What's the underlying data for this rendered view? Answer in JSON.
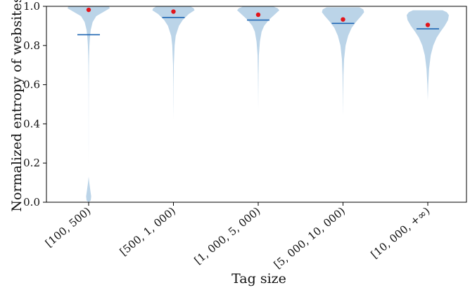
{
  "chart_data": {
    "type": "violin",
    "xlabel": "Tag size",
    "ylabel": "Normalized entropy of websites",
    "ylim": [
      0,
      1
    ],
    "yticks": [
      0.0,
      0.2,
      0.4,
      0.6,
      0.8,
      1.0
    ],
    "ytick_labels": [
      "0.0",
      "0.2",
      "0.4",
      "0.6",
      "0.8",
      "1.0"
    ],
    "grid": false,
    "legend": "none",
    "colors": {
      "violin": "#a8c8e1",
      "median": "#1f66b3",
      "mean": "#e3141a"
    },
    "categories": [
      "[100, 500)",
      "[500, 1, 000)",
      "[1, 000, 5, 000)",
      "[5, 000, 10, 000)",
      "[10, 000, +∞)"
    ],
    "groups": [
      {
        "category": "[100, 500)",
        "mean": 0.982,
        "median": 0.855,
        "density": [
          [
            0.0,
            0.0
          ],
          [
            0.01,
            0.05
          ],
          [
            0.03,
            0.06
          ],
          [
            0.06,
            0.04
          ],
          [
            0.1,
            0.015
          ],
          [
            0.13,
            0.0
          ],
          [
            0.2,
            0.0
          ],
          [
            0.3,
            0.001
          ],
          [
            0.4,
            0.001
          ],
          [
            0.5,
            0.002
          ],
          [
            0.6,
            0.003
          ],
          [
            0.7,
            0.006
          ],
          [
            0.75,
            0.01
          ],
          [
            0.8,
            0.018
          ],
          [
            0.84,
            0.03
          ],
          [
            0.88,
            0.05
          ],
          [
            0.92,
            0.095
          ],
          [
            0.95,
            0.18
          ],
          [
            0.98,
            0.42
          ],
          [
            0.99,
            0.5
          ],
          [
            1.0,
            0.48
          ]
        ]
      },
      {
        "category": "[500, 1, 000)",
        "mean": 0.973,
        "median": 0.943,
        "density": [
          [
            0.42,
            0.0
          ],
          [
            0.5,
            0.002
          ],
          [
            0.6,
            0.004
          ],
          [
            0.7,
            0.009
          ],
          [
            0.8,
            0.028
          ],
          [
            0.85,
            0.055
          ],
          [
            0.9,
            0.13
          ],
          [
            0.93,
            0.22
          ],
          [
            0.96,
            0.36
          ],
          [
            0.98,
            0.5
          ],
          [
            0.99,
            0.48
          ],
          [
            1.0,
            0.4
          ]
        ]
      },
      {
        "category": "[1, 000, 5, 000)",
        "mean": 0.957,
        "median": 0.93,
        "density": [
          [
            0.47,
            0.0
          ],
          [
            0.55,
            0.002
          ],
          [
            0.65,
            0.006
          ],
          [
            0.75,
            0.015
          ],
          [
            0.82,
            0.04
          ],
          [
            0.87,
            0.08
          ],
          [
            0.9,
            0.14
          ],
          [
            0.93,
            0.25
          ],
          [
            0.96,
            0.4
          ],
          [
            0.98,
            0.5
          ],
          [
            0.99,
            0.46
          ],
          [
            1.0,
            0.35
          ]
        ]
      },
      {
        "category": "[5, 000, 10, 000)",
        "mean": 0.933,
        "median": 0.913,
        "density": [
          [
            0.44,
            0.0
          ],
          [
            0.55,
            0.004
          ],
          [
            0.65,
            0.01
          ],
          [
            0.73,
            0.025
          ],
          [
            0.8,
            0.06
          ],
          [
            0.85,
            0.12
          ],
          [
            0.89,
            0.2
          ],
          [
            0.92,
            0.3
          ],
          [
            0.95,
            0.42
          ],
          [
            0.97,
            0.49
          ],
          [
            0.985,
            0.47
          ],
          [
            0.995,
            0.38
          ]
        ]
      },
      {
        "category": "[10, 000, +∞)",
        "mean": 0.905,
        "median": 0.885,
        "density": [
          [
            0.52,
            0.0
          ],
          [
            0.6,
            0.01
          ],
          [
            0.68,
            0.03
          ],
          [
            0.75,
            0.07
          ],
          [
            0.8,
            0.13
          ],
          [
            0.84,
            0.21
          ],
          [
            0.87,
            0.3
          ],
          [
            0.9,
            0.4
          ],
          [
            0.93,
            0.48
          ],
          [
            0.955,
            0.5
          ],
          [
            0.97,
            0.45
          ],
          [
            0.98,
            0.35
          ]
        ]
      }
    ]
  }
}
